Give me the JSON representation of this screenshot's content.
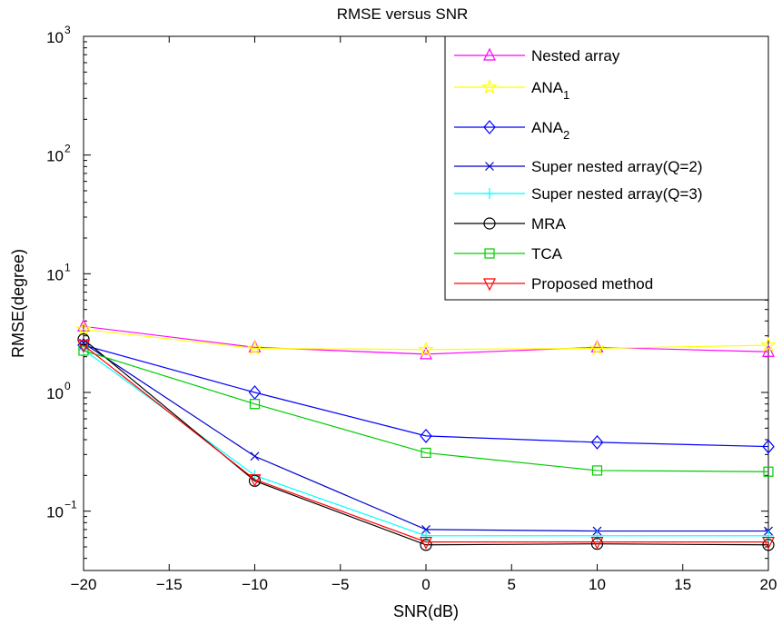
{
  "chart_data": {
    "type": "line",
    "title": "RMSE versus SNR",
    "xlabel": "SNR(dB)",
    "ylabel": "RMSE(degree)",
    "x": [
      -20,
      -10,
      0,
      10,
      20
    ],
    "xlim": [
      -20,
      20
    ],
    "ylim": [
      0.03,
      1000
    ],
    "yscale": "log",
    "grid": false,
    "legend_position": "top-right",
    "xticks": [
      "−20",
      "−15",
      "−10",
      "−5",
      "0",
      "5",
      "10",
      "15",
      "20"
    ],
    "yticks": [
      {
        "base": "10",
        "exp": "−1"
      },
      {
        "base": "10",
        "exp": "0"
      },
      {
        "base": "10",
        "exp": "1"
      },
      {
        "base": "10",
        "exp": "2"
      },
      {
        "base": "10",
        "exp": "3"
      }
    ],
    "series": [
      {
        "name": "Nested array",
        "name_sub": "",
        "color": "#ff00ff",
        "marker": "triangle-up",
        "values": [
          3.6,
          2.4,
          2.1,
          2.4,
          2.2
        ]
      },
      {
        "name": "ANA",
        "name_sub": "1",
        "color": "#ffff00",
        "marker": "star",
        "values": [
          3.4,
          2.35,
          2.3,
          2.35,
          2.5
        ]
      },
      {
        "name": "ANA",
        "name_sub": "2",
        "color": "#0000ff",
        "marker": "diamond",
        "values": [
          2.5,
          1.0,
          0.43,
          0.38,
          0.35
        ]
      },
      {
        "name": "Super nested array(Q=2)",
        "name_sub": "",
        "color": "#0000cc",
        "marker": "x",
        "values": [
          2.6,
          0.29,
          0.07,
          0.068,
          0.068
        ]
      },
      {
        "name": "Super nested array(Q=3)",
        "name_sub": "",
        "color": "#00ffff",
        "marker": "plus",
        "values": [
          2.3,
          0.2,
          0.062,
          0.062,
          0.062
        ]
      },
      {
        "name": "MRA",
        "name_sub": "",
        "color": "#000000",
        "marker": "circle",
        "values": [
          2.8,
          0.18,
          0.052,
          0.053,
          0.052
        ]
      },
      {
        "name": "TCA",
        "name_sub": "",
        "color": "#00cc00",
        "marker": "square",
        "values": [
          2.25,
          0.8,
          0.31,
          0.22,
          0.215
        ]
      },
      {
        "name": "Proposed method",
        "name_sub": "",
        "color": "#ff0000",
        "marker": "triangle-down",
        "values": [
          2.5,
          0.185,
          0.055,
          0.055,
          0.055
        ]
      }
    ]
  }
}
